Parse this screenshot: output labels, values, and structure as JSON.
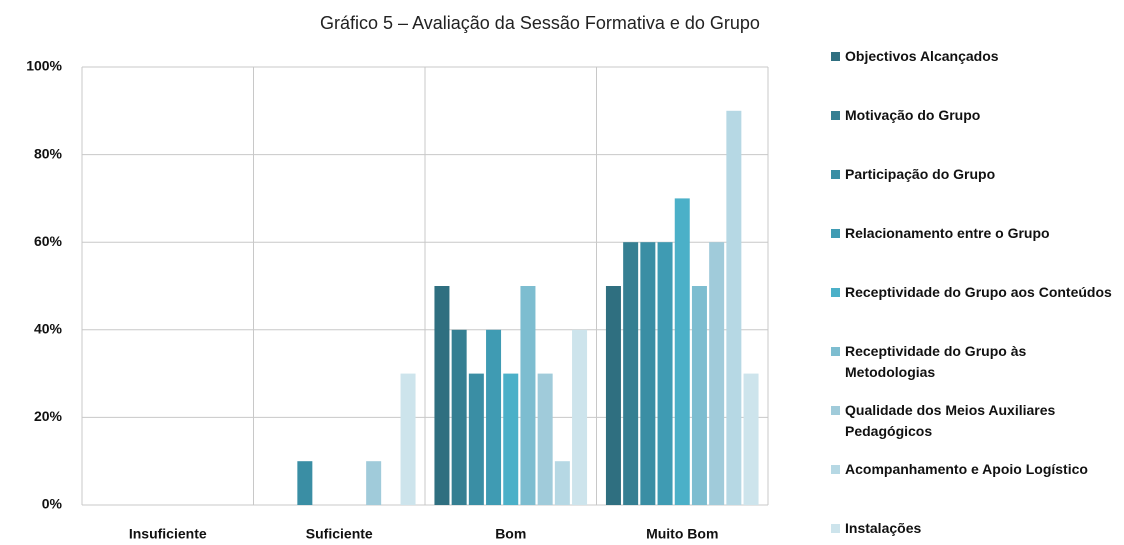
{
  "chart_data": {
    "type": "bar",
    "title": "Gráfico 5 – Avaliação da Sessão Formativa e do Grupo",
    "categories": [
      "Insuficiente",
      "Suficiente",
      "Bom",
      "Muito Bom"
    ],
    "series": [
      {
        "name": "Objectivos Alcançados",
        "color": "#2f6f80",
        "values": [
          0,
          0,
          50,
          50
        ]
      },
      {
        "name": "Motivação do Grupo",
        "color": "#357f92",
        "values": [
          0,
          0,
          40,
          60
        ]
      },
      {
        "name": "Participação do Grupo",
        "color": "#3a8ea4",
        "values": [
          0,
          10,
          30,
          60
        ]
      },
      {
        "name": "Relacionamento entre o Grupo",
        "color": "#3f9bb3",
        "values": [
          0,
          0,
          40,
          60
        ]
      },
      {
        "name": "Receptividade do Grupo aos Conteúdos",
        "color": "#4bb0c8",
        "values": [
          0,
          0,
          30,
          70
        ]
      },
      {
        "name": "Receptividade do Grupo às Metodologias",
        "color": "#7dbdd0",
        "values": [
          0,
          0,
          50,
          50
        ]
      },
      {
        "name": "Qualidade dos Meios Auxiliares Pedagógicos",
        "color": "#a0cbda",
        "values": [
          0,
          10,
          30,
          60
        ]
      },
      {
        "name": "Acompanhamento e Apoio Logístico",
        "color": "#b6d8e4",
        "values": [
          0,
          0,
          10,
          90
        ]
      },
      {
        "name": "Instalações",
        "color": "#cde4ec",
        "values": [
          0,
          30,
          40,
          30
        ]
      }
    ],
    "ylim": [
      0,
      100
    ],
    "yticks": [
      {
        "value": 0,
        "label": "0%"
      },
      {
        "value": 20,
        "label": "20%"
      },
      {
        "value": 40,
        "label": "40%"
      },
      {
        "value": 60,
        "label": "60%"
      },
      {
        "value": 80,
        "label": "80%"
      },
      {
        "value": 100,
        "label": "100%"
      }
    ],
    "grid": true
  }
}
